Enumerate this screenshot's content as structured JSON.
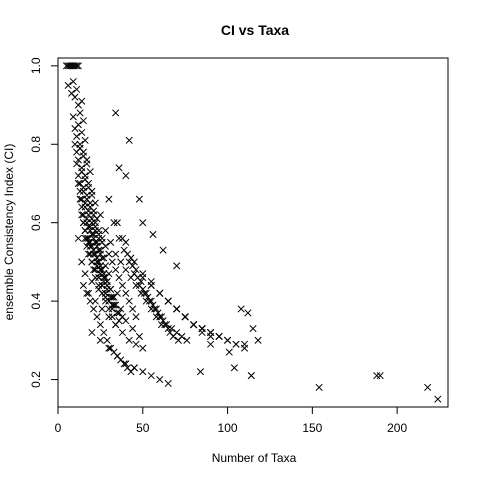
{
  "chart_data": {
    "type": "scatter",
    "title": "CI vs Taxa",
    "xlabel": "Number of Taxa",
    "ylabel": "ensemble Consistency Index (CI)",
    "xlim": [
      0,
      230
    ],
    "ylim": [
      0.13,
      1.02
    ],
    "x_ticks": [
      0,
      50,
      100,
      150,
      200
    ],
    "y_ticks": [
      0.2,
      0.4,
      0.6,
      0.8,
      1.0
    ],
    "x_tick_labels": [
      "0",
      "50",
      "100",
      "150",
      "200"
    ],
    "y_tick_labels": [
      "0.2",
      "0.4",
      "0.6",
      "0.8",
      "1.0"
    ],
    "marker": "x",
    "grid": false,
    "x": [
      5,
      6,
      7,
      8,
      9,
      10,
      11,
      12,
      6,
      8,
      9,
      10,
      11,
      12,
      13,
      14,
      15,
      9,
      10,
      11,
      12,
      13,
      14,
      15,
      16,
      17,
      10,
      11,
      12,
      13,
      14,
      15,
      16,
      17,
      18,
      19,
      20,
      11,
      12,
      13,
      14,
      15,
      16,
      17,
      18,
      19,
      20,
      21,
      22,
      12,
      13,
      14,
      15,
      16,
      17,
      18,
      19,
      20,
      21,
      22,
      23,
      24,
      13,
      14,
      15,
      16,
      17,
      18,
      19,
      20,
      21,
      22,
      23,
      24,
      25,
      26,
      14,
      15,
      16,
      17,
      18,
      19,
      20,
      21,
      22,
      23,
      24,
      25,
      26,
      27,
      28,
      15,
      16,
      17,
      18,
      19,
      20,
      21,
      22,
      23,
      24,
      25,
      26,
      27,
      28,
      29,
      30,
      16,
      17,
      18,
      19,
      20,
      21,
      22,
      23,
      24,
      25,
      26,
      27,
      28,
      29,
      30,
      31,
      32,
      18,
      19,
      20,
      21,
      22,
      23,
      24,
      25,
      26,
      27,
      28,
      29,
      30,
      31,
      32,
      33,
      34,
      35,
      20,
      21,
      22,
      23,
      24,
      25,
      26,
      27,
      28,
      29,
      30,
      31,
      32,
      33,
      34,
      35,
      36,
      37,
      38,
      22,
      24,
      26,
      28,
      30,
      32,
      34,
      36,
      38,
      40,
      42,
      44,
      46,
      25,
      28,
      31,
      34,
      37,
      40,
      43,
      46,
      49,
      52,
      55,
      58,
      61,
      30,
      33,
      36,
      39,
      42,
      45,
      48,
      51,
      54,
      57,
      60,
      63,
      66,
      35,
      38,
      41,
      44,
      47,
      50,
      53,
      56,
      59,
      62,
      65,
      68,
      71,
      40,
      43,
      46,
      49,
      52,
      55,
      58,
      61,
      64,
      67,
      70,
      73,
      76,
      45,
      50,
      55,
      60,
      65,
      70,
      75,
      80,
      85,
      90,
      50,
      55,
      60,
      65,
      70,
      75,
      80,
      85,
      90,
      55,
      60,
      65,
      70,
      75,
      80,
      85,
      90,
      95,
      65,
      70,
      75,
      80,
      85,
      90,
      95,
      100,
      105,
      75,
      80,
      85,
      90,
      95,
      100,
      105,
      110,
      12,
      14,
      16,
      18,
      20,
      22,
      24,
      26,
      28,
      30,
      32,
      34,
      36,
      38,
      40,
      42,
      44,
      46,
      48,
      50,
      15,
      17,
      19,
      21,
      23,
      25,
      27,
      29,
      31,
      33,
      35,
      37,
      39,
      41,
      43,
      45,
      20,
      25,
      30,
      35,
      40,
      45,
      50,
      55,
      60,
      65,
      34,
      40,
      48,
      36,
      42,
      50,
      56,
      62,
      70,
      108,
      110,
      112,
      115,
      118,
      154,
      188,
      190,
      218,
      224,
      84,
      90,
      101,
      104,
      114,
      114
    ],
    "y": [
      1.0,
      1.0,
      1.0,
      1.0,
      1.0,
      1.0,
      1.0,
      1.0,
      0.95,
      0.93,
      0.96,
      0.92,
      0.94,
      0.9,
      0.88,
      0.91,
      0.86,
      0.87,
      0.84,
      0.82,
      0.85,
      0.8,
      0.83,
      0.78,
      0.81,
      0.76,
      0.8,
      0.78,
      0.76,
      0.79,
      0.74,
      0.77,
      0.72,
      0.75,
      0.7,
      0.73,
      0.68,
      0.75,
      0.72,
      0.7,
      0.73,
      0.68,
      0.71,
      0.66,
      0.69,
      0.64,
      0.67,
      0.62,
      0.65,
      0.7,
      0.68,
      0.66,
      0.69,
      0.64,
      0.67,
      0.62,
      0.65,
      0.6,
      0.63,
      0.58,
      0.61,
      0.56,
      0.66,
      0.64,
      0.62,
      0.65,
      0.6,
      0.63,
      0.58,
      0.61,
      0.56,
      0.59,
      0.54,
      0.57,
      0.52,
      0.55,
      0.62,
      0.6,
      0.58,
      0.61,
      0.56,
      0.59,
      0.54,
      0.57,
      0.52,
      0.55,
      0.5,
      0.53,
      0.48,
      0.51,
      0.46,
      0.6,
      0.58,
      0.56,
      0.59,
      0.54,
      0.57,
      0.52,
      0.55,
      0.5,
      0.53,
      0.48,
      0.51,
      0.46,
      0.49,
      0.44,
      0.47,
      0.56,
      0.54,
      0.52,
      0.55,
      0.5,
      0.53,
      0.48,
      0.51,
      0.46,
      0.49,
      0.44,
      0.47,
      0.42,
      0.45,
      0.4,
      0.43,
      0.41,
      0.55,
      0.52,
      0.5,
      0.53,
      0.48,
      0.51,
      0.46,
      0.49,
      0.44,
      0.47,
      0.42,
      0.45,
      0.4,
      0.43,
      0.38,
      0.41,
      0.39,
      0.42,
      0.5,
      0.48,
      0.46,
      0.49,
      0.44,
      0.47,
      0.42,
      0.45,
      0.4,
      0.43,
      0.38,
      0.41,
      0.36,
      0.39,
      0.34,
      0.37,
      0.35,
      0.38,
      0.36,
      0.6,
      0.58,
      0.56,
      0.54,
      0.52,
      0.5,
      0.48,
      0.46,
      0.44,
      0.42,
      0.4,
      0.38,
      0.36,
      0.62,
      0.58,
      0.55,
      0.52,
      0.5,
      0.48,
      0.46,
      0.44,
      0.42,
      0.4,
      0.38,
      0.36,
      0.34,
      0.66,
      0.6,
      0.56,
      0.53,
      0.5,
      0.47,
      0.44,
      0.42,
      0.4,
      0.38,
      0.36,
      0.34,
      0.32,
      0.6,
      0.56,
      0.52,
      0.49,
      0.46,
      0.43,
      0.41,
      0.39,
      0.37,
      0.35,
      0.33,
      0.31,
      0.3,
      0.55,
      0.51,
      0.48,
      0.45,
      0.42,
      0.4,
      0.38,
      0.36,
      0.34,
      0.33,
      0.32,
      0.31,
      0.3,
      0.5,
      0.47,
      0.45,
      0.42,
      0.4,
      0.38,
      0.36,
      0.34,
      0.33,
      0.32,
      0.46,
      0.44,
      0.42,
      0.4,
      0.38,
      0.36,
      0.34,
      0.32,
      0.31,
      0.44,
      0.42,
      0.4,
      0.38,
      0.36,
      0.34,
      0.33,
      0.32,
      0.31,
      0.4,
      0.38,
      0.36,
      0.34,
      0.33,
      0.32,
      0.31,
      0.3,
      0.29,
      0.36,
      0.34,
      0.33,
      0.32,
      0.31,
      0.3,
      0.29,
      0.28,
      0.56,
      0.5,
      0.47,
      0.42,
      0.45,
      0.4,
      0.43,
      0.38,
      0.41,
      0.36,
      0.39,
      0.34,
      0.37,
      0.32,
      0.35,
      0.3,
      0.33,
      0.29,
      0.31,
      0.28,
      0.44,
      0.42,
      0.4,
      0.38,
      0.36,
      0.34,
      0.32,
      0.3,
      0.28,
      0.27,
      0.26,
      0.25,
      0.24,
      0.23,
      0.22,
      0.23,
      0.32,
      0.3,
      0.28,
      0.26,
      0.24,
      0.23,
      0.22,
      0.21,
      0.2,
      0.19,
      0.88,
      0.72,
      0.66,
      0.74,
      0.81,
      0.6,
      0.57,
      0.53,
      0.49,
      0.38,
      0.29,
      0.37,
      0.33,
      0.3,
      0.18,
      0.21,
      0.21,
      0.18,
      0.15,
      0.22,
      0.29,
      0.27,
      0.23,
      0.21,
      0.21
    ]
  }
}
